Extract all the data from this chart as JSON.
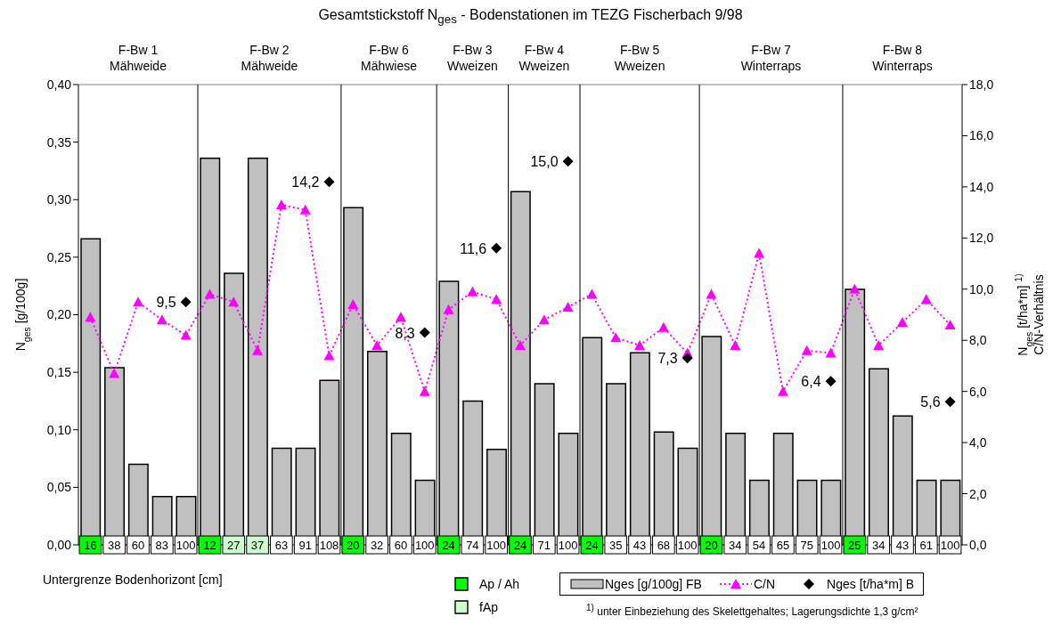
{
  "chart_data": {
    "type": "bar",
    "title": "Gesamtstickstoff N$_{ges}$ - Bodenstationen im TEZG Fischerbach 9/98",
    "xlabel": "Untergrenze Bodenhorizont [cm]",
    "ylabel": "N$_{ges}$ [g/100g]",
    "y2label": "N$_{ges}$ [t/ha*m] $^{1)}$\nC/N-Verhältnis",
    "categories": [
      "16",
      "38",
      "60",
      "83",
      "100",
      "12",
      "27",
      "37",
      "63",
      "91",
      "108",
      "20",
      "32",
      "60",
      "100",
      "24",
      "74",
      "100",
      "24",
      "71",
      "100",
      "24",
      "35",
      "43",
      "68",
      "100",
      "20",
      "34",
      "54",
      "65",
      "75",
      "100",
      "25",
      "34",
      "43",
      "61",
      "100"
    ],
    "series": [
      {
        "name": "Nges [g/100g] FB",
        "color": "#c0c0c0",
        "values": [
          0.266,
          0.154,
          0.07,
          0.042,
          0.042,
          0.336,
          0.236,
          0.336,
          0.084,
          0.084,
          0.143,
          0.293,
          0.168,
          0.097,
          0.056,
          0.229,
          0.125,
          0.083,
          0.307,
          0.14,
          0.097,
          0.18,
          0.14,
          0.167,
          0.098,
          0.084,
          0.181,
          0.097,
          0.056,
          0.097,
          0.056,
          0.056,
          0.222,
          0.153,
          0.112,
          0.056,
          0.056
        ]
      },
      {
        "name": "C/N",
        "type": "line",
        "axis": "y2",
        "color": "#ff00ff",
        "marker": "triangle",
        "line_style": "dotted",
        "values": [
          8.9,
          6.7,
          9.5,
          8.8,
          8.2,
          9.8,
          9.5,
          7.6,
          13.3,
          13.1,
          7.4,
          9.4,
          7.8,
          8.9,
          6.0,
          9.2,
          9.9,
          9.6,
          7.8,
          8.8,
          9.3,
          9.8,
          8.1,
          7.8,
          8.5,
          7.5,
          9.8,
          7.8,
          11.4,
          6.0,
          7.6,
          7.5,
          10.0,
          7.8,
          8.7,
          9.6,
          8.6
        ]
      },
      {
        "name": "Nges [t/ha*m] B",
        "type": "scatter",
        "axis": "y2",
        "color": "#000000",
        "marker": "diamond",
        "values": [
          null,
          null,
          null,
          null,
          9.5,
          null,
          null,
          null,
          null,
          null,
          14.2,
          null,
          null,
          null,
          8.3,
          null,
          null,
          11.6,
          null,
          null,
          15.0,
          null,
          null,
          null,
          null,
          7.3,
          null,
          null,
          null,
          null,
          null,
          6.4,
          null,
          null,
          null,
          null,
          5.6
        ],
        "value_labels": [
          null,
          null,
          null,
          null,
          "9,5",
          null,
          null,
          null,
          null,
          null,
          "14,2",
          null,
          null,
          null,
          "8,3",
          null,
          null,
          "11,6",
          null,
          null,
          "15,0",
          null,
          null,
          null,
          null,
          "7,3",
          null,
          null,
          null,
          null,
          null,
          "6,4",
          null,
          null,
          null,
          null,
          "5,6"
        ]
      },
      {
        "name": "Ap / Ah",
        "type": "scatter",
        "axis": "y",
        "color": "#00ff00",
        "marker": "square",
        "values": [
          0,
          null,
          null,
          null,
          null,
          0,
          null,
          null,
          null,
          null,
          null,
          0,
          null,
          null,
          null,
          0,
          null,
          null,
          0,
          null,
          null,
          0,
          null,
          null,
          null,
          null,
          0,
          null,
          null,
          null,
          null,
          null,
          0,
          null,
          null,
          null,
          null
        ]
      },
      {
        "name": "fAp",
        "type": "scatter",
        "axis": "y",
        "color": "#ccffcc",
        "marker": "square",
        "values": [
          null,
          null,
          null,
          null,
          null,
          null,
          0,
          0,
          null,
          null,
          null,
          null,
          null,
          null,
          null,
          null,
          null,
          null,
          null,
          null,
          null,
          null,
          null,
          null,
          null,
          null,
          null,
          null,
          null,
          null,
          null,
          null,
          null,
          null,
          null,
          null,
          null
        ]
      }
    ],
    "ylim": [
      0,
      0.4
    ],
    "yticks": [
      {
        "value": 0,
        "label": "0,00"
      },
      {
        "value": 0.05,
        "label": "0,05"
      },
      {
        "value": 0.1,
        "label": "0,10"
      },
      {
        "value": 0.15,
        "label": "0,15"
      },
      {
        "value": 0.2,
        "label": "0,20"
      },
      {
        "value": 0.25,
        "label": "0,25"
      },
      {
        "value": 0.3,
        "label": "0,30"
      },
      {
        "value": 0.35,
        "label": "0,35"
      },
      {
        "value": 0.4,
        "label": "0,40"
      }
    ],
    "y2lim": [
      0,
      18
    ],
    "y2ticks": [
      {
        "value": 0,
        "label": "0,0"
      },
      {
        "value": 2,
        "label": "2,0"
      },
      {
        "value": 4,
        "label": "4,0"
      },
      {
        "value": 6,
        "label": "6,0"
      },
      {
        "value": 8,
        "label": "8,0"
      },
      {
        "value": 10,
        "label": "10,0"
      },
      {
        "value": 12,
        "label": "12,0"
      },
      {
        "value": 14,
        "label": "14,0"
      },
      {
        "value": 16,
        "label": "16,0"
      },
      {
        "value": 18,
        "label": "18,0"
      }
    ],
    "legend": "bottom",
    "annotations": [
      "F-Bw 1\nMähweide",
      "F-Bw 2\nMähweide",
      "F-Bw 6\nMähwiese",
      "F-Bw 3\nWweizen",
      "F-Bw 4\nWweizen",
      "F-Bw 5\nWweizen",
      "F-Bw 7\nWinterraps",
      "F-Bw 8\nWinterraps",
      "$^{1)}$ unter Einbeziehung des Skelettgehaltes; Lagerungsdichte 1,3 g/cm²"
    ]
  }
}
